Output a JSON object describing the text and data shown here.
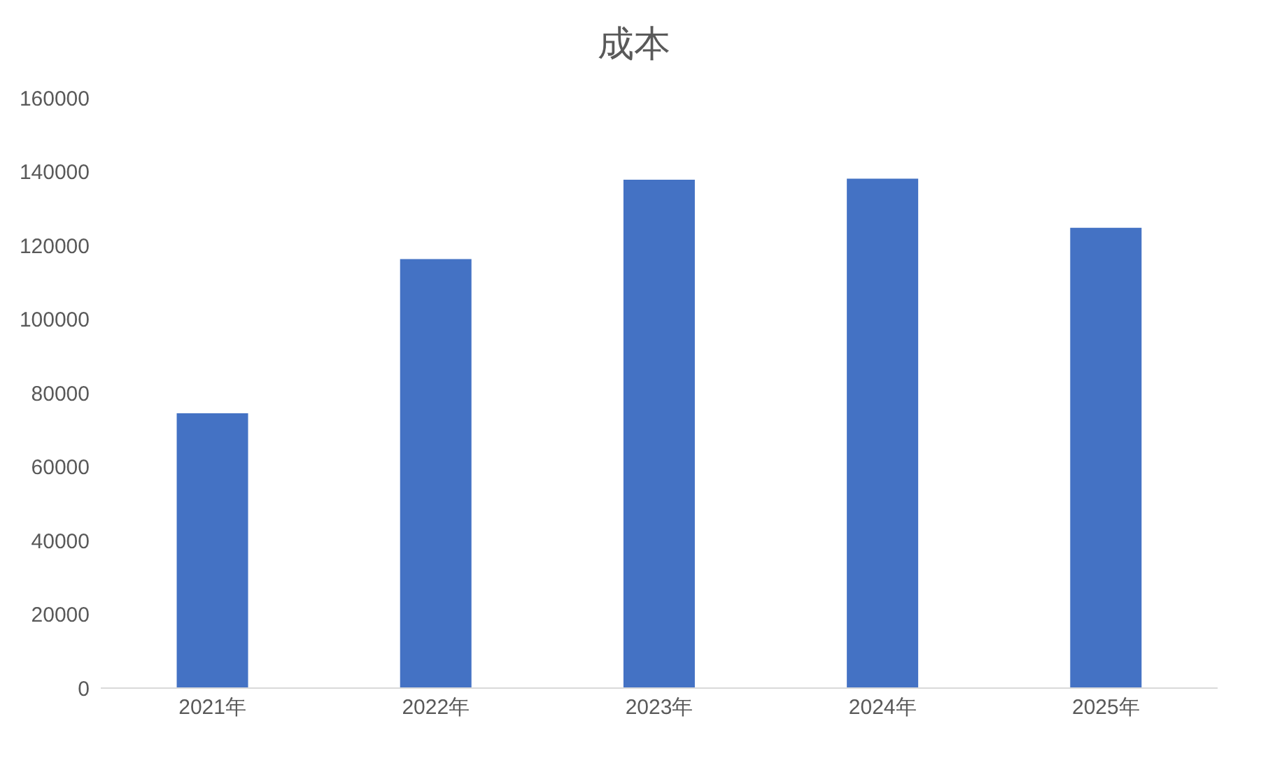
{
  "chart_data": {
    "type": "bar",
    "title": "成本",
    "categories": [
      "2021年",
      "2022年",
      "2023年",
      "2024年",
      "2025年"
    ],
    "values": [
      74500,
      116300,
      137800,
      138100,
      124800
    ],
    "color": "#4472c4",
    "ylim": [
      0,
      160000
    ],
    "yticks": [
      0,
      20000,
      40000,
      60000,
      80000,
      100000,
      120000,
      140000,
      160000
    ],
    "grid": false,
    "legend": false
  }
}
